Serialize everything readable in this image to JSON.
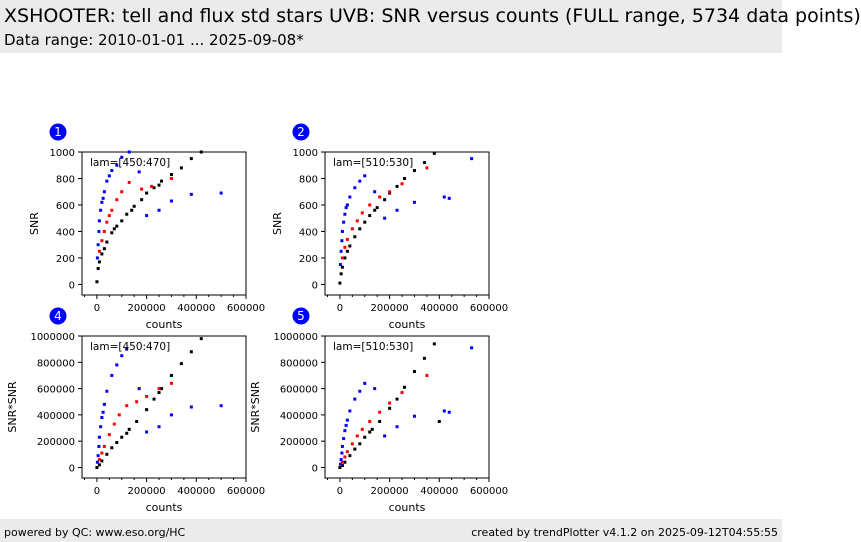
{
  "header": {
    "title": "XSHOOTER: tell and flux std stars UVB: SNR versus counts (FULL range, 5734 data points)",
    "subtitle": "Data range: 2010-01-01 ... 2025-09-08*"
  },
  "footer": {
    "left": "powered by QC: www.eso.org/HC",
    "right": "created by trendPlotter v4.1.2 on 2025-09-12T04:55:55"
  },
  "colors": {
    "black": "#000000",
    "red": "#ff0000",
    "blue": "#0000ff",
    "badge": "#0000ff"
  },
  "chart_data": [
    {
      "badge": "1",
      "type": "scatter",
      "annotation": "lam=[450:470]",
      "xlabel": "counts",
      "ylabel": "SNR",
      "xlim": [
        -60000,
        600000
      ],
      "ylim": [
        -80,
        1000
      ],
      "xticks": [
        0,
        200000,
        400000,
        600000
      ],
      "xticklabels": [
        "0",
        "200000",
        "400000",
        "600000"
      ],
      "yticks": [
        0,
        200,
        400,
        600,
        800,
        1000
      ],
      "yticklabels": [
        "0",
        "200",
        "400",
        "600",
        "800",
        "1000"
      ],
      "series": [
        {
          "color": "black",
          "points": [
            [
              0,
              20
            ],
            [
              5000,
              120
            ],
            [
              10000,
              170
            ],
            [
              20000,
              230
            ],
            [
              40000,
              320
            ],
            [
              60000,
              390
            ],
            [
              80000,
              440
            ],
            [
              100000,
              480
            ],
            [
              120000,
              530
            ],
            [
              150000,
              590
            ],
            [
              180000,
              640
            ],
            [
              200000,
              690
            ],
            [
              230000,
              730
            ],
            [
              260000,
              780
            ],
            [
              300000,
              830
            ],
            [
              340000,
              880
            ],
            [
              380000,
              950
            ],
            [
              420000,
              1000
            ],
            [
              30000,
              270
            ],
            [
              70000,
              420
            ],
            [
              140000,
              560
            ],
            [
              250000,
              750
            ]
          ]
        },
        {
          "color": "red",
          "points": [
            [
              10000,
              250
            ],
            [
              20000,
              330
            ],
            [
              30000,
              400
            ],
            [
              40000,
              470
            ],
            [
              60000,
              560
            ],
            [
              80000,
              640
            ],
            [
              100000,
              700
            ],
            [
              130000,
              770
            ],
            [
              180000,
              720
            ],
            [
              220000,
              740
            ],
            [
              300000,
              800
            ],
            [
              50000,
              520
            ]
          ]
        },
        {
          "color": "blue",
          "points": [
            [
              2000,
              200
            ],
            [
              5000,
              300
            ],
            [
              8000,
              400
            ],
            [
              10000,
              480
            ],
            [
              15000,
              560
            ],
            [
              20000,
              620
            ],
            [
              30000,
              700
            ],
            [
              40000,
              780
            ],
            [
              60000,
              860
            ],
            [
              80000,
              900
            ],
            [
              100000,
              960
            ],
            [
              130000,
              1000
            ],
            [
              170000,
              850
            ],
            [
              200000,
              520
            ],
            [
              250000,
              560
            ],
            [
              300000,
              630
            ],
            [
              380000,
              680
            ],
            [
              500000,
              690
            ],
            [
              25000,
              650
            ],
            [
              50000,
              820
            ]
          ]
        }
      ]
    },
    {
      "badge": "2",
      "type": "scatter",
      "annotation": "lam=[510:530]",
      "xlabel": "counts",
      "ylabel": "SNR",
      "xlim": [
        -60000,
        600000
      ],
      "ylim": [
        -80,
        1000
      ],
      "xticks": [
        0,
        200000,
        400000,
        600000
      ],
      "xticklabels": [
        "0",
        "200000",
        "400000",
        "600000"
      ],
      "yticks": [
        0,
        200,
        400,
        600,
        800,
        1000
      ],
      "yticklabels": [
        "0",
        "200",
        "400",
        "600",
        "800",
        "1000"
      ],
      "series": [
        {
          "color": "black",
          "points": [
            [
              0,
              10
            ],
            [
              5000,
              80
            ],
            [
              10000,
              130
            ],
            [
              20000,
              200
            ],
            [
              40000,
              290
            ],
            [
              60000,
              360
            ],
            [
              80000,
              420
            ],
            [
              100000,
              470
            ],
            [
              120000,
              520
            ],
            [
              150000,
              580
            ],
            [
              180000,
              640
            ],
            [
              200000,
              690
            ],
            [
              230000,
              740
            ],
            [
              260000,
              800
            ],
            [
              300000,
              860
            ],
            [
              340000,
              920
            ],
            [
              380000,
              990
            ],
            [
              30000,
              250
            ],
            [
              140000,
              560
            ]
          ]
        },
        {
          "color": "red",
          "points": [
            [
              10000,
              200
            ],
            [
              20000,
              280
            ],
            [
              30000,
              340
            ],
            [
              50000,
              420
            ],
            [
              70000,
              480
            ],
            [
              90000,
              540
            ],
            [
              120000,
              600
            ],
            [
              160000,
              660
            ],
            [
              200000,
              700
            ],
            [
              250000,
              760
            ],
            [
              350000,
              880
            ]
          ]
        },
        {
          "color": "blue",
          "points": [
            [
              2000,
              150
            ],
            [
              5000,
              250
            ],
            [
              8000,
              330
            ],
            [
              10000,
              400
            ],
            [
              15000,
              470
            ],
            [
              20000,
              530
            ],
            [
              30000,
              600
            ],
            [
              40000,
              660
            ],
            [
              60000,
              730
            ],
            [
              80000,
              780
            ],
            [
              100000,
              820
            ],
            [
              140000,
              700
            ],
            [
              180000,
              500
            ],
            [
              230000,
              560
            ],
            [
              300000,
              620
            ],
            [
              420000,
              660
            ],
            [
              440000,
              650
            ],
            [
              530000,
              950
            ],
            [
              25000,
              580
            ]
          ]
        }
      ]
    },
    {
      "badge": "4",
      "type": "scatter",
      "annotation": "lam=[450:470]",
      "xlabel": "counts",
      "ylabel": "SNR*SNR",
      "xlim": [
        -60000,
        600000
      ],
      "ylim": [
        -80000,
        1000000
      ],
      "xticks": [
        0,
        200000,
        400000,
        600000
      ],
      "xticklabels": [
        "0",
        "200000",
        "400000",
        "600000"
      ],
      "yticks": [
        0,
        200000,
        400000,
        600000,
        800000,
        1000000
      ],
      "yticklabels": [
        "0",
        "200000",
        "400000",
        "600000",
        "800000",
        "1000000"
      ],
      "series": [
        {
          "color": "black",
          "points": [
            [
              0,
              0
            ],
            [
              10000,
              20000
            ],
            [
              20000,
              50000
            ],
            [
              40000,
              100000
            ],
            [
              60000,
              150000
            ],
            [
              80000,
              190000
            ],
            [
              100000,
              230000
            ],
            [
              130000,
              290000
            ],
            [
              160000,
              350000
            ],
            [
              200000,
              440000
            ],
            [
              230000,
              520000
            ],
            [
              260000,
              600000
            ],
            [
              300000,
              700000
            ],
            [
              340000,
              790000
            ],
            [
              380000,
              880000
            ],
            [
              420000,
              980000
            ],
            [
              120000,
              260000
            ],
            [
              250000,
              570000
            ]
          ]
        },
        {
          "color": "red",
          "points": [
            [
              10000,
              60000
            ],
            [
              20000,
              110000
            ],
            [
              30000,
              160000
            ],
            [
              50000,
              250000
            ],
            [
              70000,
              330000
            ],
            [
              90000,
              400000
            ],
            [
              120000,
              470000
            ],
            [
              160000,
              500000
            ],
            [
              200000,
              540000
            ],
            [
              250000,
              600000
            ],
            [
              300000,
              640000
            ]
          ]
        },
        {
          "color": "blue",
          "points": [
            [
              2000,
              40000
            ],
            [
              5000,
              90000
            ],
            [
              8000,
              160000
            ],
            [
              10000,
              230000
            ],
            [
              15000,
              310000
            ],
            [
              20000,
              380000
            ],
            [
              30000,
              480000
            ],
            [
              40000,
              580000
            ],
            [
              60000,
              700000
            ],
            [
              80000,
              780000
            ],
            [
              100000,
              850000
            ],
            [
              120000,
              900000
            ],
            [
              170000,
              600000
            ],
            [
              200000,
              270000
            ],
            [
              250000,
              310000
            ],
            [
              300000,
              400000
            ],
            [
              380000,
              460000
            ],
            [
              500000,
              470000
            ],
            [
              25000,
              420000
            ]
          ]
        }
      ]
    },
    {
      "badge": "5",
      "type": "scatter",
      "annotation": "lam=[510:530]",
      "xlabel": "counts",
      "ylabel": "SNR*SNR",
      "xlim": [
        -60000,
        600000
      ],
      "ylim": [
        -80000,
        1000000
      ],
      "xticks": [
        0,
        200000,
        400000,
        600000
      ],
      "xticklabels": [
        "0",
        "200000",
        "400000",
        "600000"
      ],
      "yticks": [
        0,
        200000,
        400000,
        600000,
        800000,
        1000000
      ],
      "yticklabels": [
        "0",
        "200000",
        "400000",
        "600000",
        "800000",
        "1000000"
      ],
      "series": [
        {
          "color": "black",
          "points": [
            [
              0,
              0
            ],
            [
              10000,
              15000
            ],
            [
              20000,
              40000
            ],
            [
              40000,
              90000
            ],
            [
              60000,
              140000
            ],
            [
              80000,
              180000
            ],
            [
              100000,
              230000
            ],
            [
              130000,
              290000
            ],
            [
              160000,
              350000
            ],
            [
              200000,
              450000
            ],
            [
              230000,
              520000
            ],
            [
              260000,
              610000
            ],
            [
              300000,
              730000
            ],
            [
              340000,
              830000
            ],
            [
              380000,
              940000
            ],
            [
              400000,
              350000
            ],
            [
              120000,
              270000
            ]
          ]
        },
        {
          "color": "red",
          "points": [
            [
              10000,
              40000
            ],
            [
              20000,
              80000
            ],
            [
              30000,
              120000
            ],
            [
              50000,
              180000
            ],
            [
              70000,
              240000
            ],
            [
              90000,
              290000
            ],
            [
              120000,
              350000
            ],
            [
              160000,
              420000
            ],
            [
              200000,
              490000
            ],
            [
              250000,
              570000
            ],
            [
              350000,
              700000
            ]
          ]
        },
        {
          "color": "blue",
          "points": [
            [
              2000,
              25000
            ],
            [
              5000,
              60000
            ],
            [
              8000,
              110000
            ],
            [
              10000,
              160000
            ],
            [
              15000,
              220000
            ],
            [
              20000,
              280000
            ],
            [
              30000,
              360000
            ],
            [
              40000,
              430000
            ],
            [
              60000,
              520000
            ],
            [
              80000,
              580000
            ],
            [
              100000,
              640000
            ],
            [
              140000,
              600000
            ],
            [
              180000,
              240000
            ],
            [
              230000,
              310000
            ],
            [
              300000,
              390000
            ],
            [
              420000,
              430000
            ],
            [
              440000,
              420000
            ],
            [
              530000,
              910000
            ],
            [
              25000,
              320000
            ]
          ]
        }
      ]
    }
  ]
}
